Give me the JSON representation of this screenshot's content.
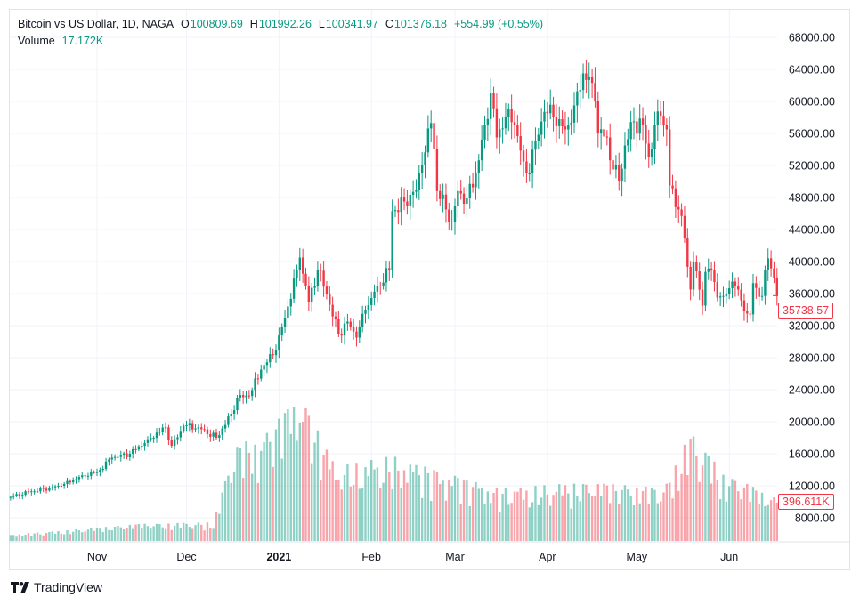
{
  "legend": {
    "symbol": "Bitcoin vs US Dollar, 1D, NAGA",
    "open_label": "O",
    "open": "100809.69",
    "high_label": "H",
    "high": "101992.26",
    "low_label": "L",
    "low": "100341.97",
    "close_label": "C",
    "close": "101376.18",
    "change": "+554.99 (+0.55%)",
    "volume_label": "Volume",
    "volume": "17.172K"
  },
  "price_tag": "35738.57",
  "volume_tag": "396.611K",
  "brand": "TradingView",
  "colors": {
    "up": "#089981",
    "down": "#f23645",
    "grid": "#f0f3fa"
  },
  "chart_data": {
    "type": "candlestick",
    "interval": "1D",
    "y_axis": {
      "ticks": [
        "68000.00",
        "64000.00",
        "60000.00",
        "56000.00",
        "52000.00",
        "48000.00",
        "44000.00",
        "40000.00",
        "36000.00",
        "32000.00",
        "28000.00",
        "24000.00",
        "20000.00",
        "16000.00",
        "12000.00",
        "8000.00"
      ],
      "range": [
        8000,
        68000
      ]
    },
    "x_axis": {
      "ticks": [
        {
          "label": "Nov",
          "date": "2020-11-01",
          "bold": false
        },
        {
          "label": "Dec",
          "date": "2020-12-01",
          "bold": false
        },
        {
          "label": "2021",
          "date": "2021-01-01",
          "bold": true
        },
        {
          "label": "Feb",
          "date": "2021-02-01",
          "bold": false
        },
        {
          "label": "Mar",
          "date": "2021-03-01",
          "bold": false
        },
        {
          "label": "Apr",
          "date": "2021-04-01",
          "bold": false
        },
        {
          "label": "May",
          "date": "2021-05-01",
          "bold": false
        },
        {
          "label": "Jun",
          "date": "2021-06-01",
          "bold": false
        }
      ]
    },
    "approx_close": [
      [
        "2020-10-03",
        10600
      ],
      [
        "2020-10-10",
        11300
      ],
      [
        "2020-10-20",
        12000
      ],
      [
        "2020-10-27",
        13300
      ],
      [
        "2020-11-01",
        13700
      ],
      [
        "2020-11-06",
        15500
      ],
      [
        "2020-11-12",
        16000
      ],
      [
        "2020-11-18",
        17800
      ],
      [
        "2020-11-24",
        19300
      ],
      [
        "2020-11-26",
        17000
      ],
      [
        "2020-11-30",
        19500
      ],
      [
        "2020-12-05",
        19300
      ],
      [
        "2020-12-11",
        18000
      ],
      [
        "2020-12-16",
        21000
      ],
      [
        "2020-12-18",
        23000
      ],
      [
        "2020-12-22",
        23200
      ],
      [
        "2020-12-26",
        26500
      ],
      [
        "2020-12-31",
        29000
      ],
      [
        "2021-01-03",
        33000
      ],
      [
        "2021-01-07",
        39000
      ],
      [
        "2021-01-08",
        40500
      ],
      [
        "2021-01-11",
        35000
      ],
      [
        "2021-01-14",
        39000
      ],
      [
        "2021-01-17",
        36000
      ],
      [
        "2021-01-21",
        31000
      ],
      [
        "2021-01-24",
        32500
      ],
      [
        "2021-01-27",
        30500
      ],
      [
        "2021-01-30",
        34000
      ],
      [
        "2021-02-03",
        37000
      ],
      [
        "2021-02-07",
        39000
      ],
      [
        "2021-02-08",
        46300
      ],
      [
        "2021-02-12",
        47500
      ],
      [
        "2021-02-16",
        49000
      ],
      [
        "2021-02-18",
        52000
      ],
      [
        "2021-02-21",
        57300
      ],
      [
        "2021-02-22",
        54000
      ],
      [
        "2021-02-23",
        48800
      ],
      [
        "2021-02-26",
        46500
      ],
      [
        "2021-02-28",
        45000
      ],
      [
        "2021-03-02",
        48800
      ],
      [
        "2021-03-05",
        48000
      ],
      [
        "2021-03-08",
        51000
      ],
      [
        "2021-03-11",
        57000
      ],
      [
        "2021-03-13",
        61000
      ],
      [
        "2021-03-15",
        55500
      ],
      [
        "2021-03-18",
        58000
      ],
      [
        "2021-03-21",
        57000
      ],
      [
        "2021-03-24",
        52500
      ],
      [
        "2021-03-25",
        51000
      ],
      [
        "2021-03-28",
        55000
      ],
      [
        "2021-03-31",
        58700
      ],
      [
        "2021-04-03",
        58000
      ],
      [
        "2021-04-07",
        56500
      ],
      [
        "2021-04-10",
        59500
      ],
      [
        "2021-04-13",
        63500
      ],
      [
        "2021-04-15",
        63000
      ],
      [
        "2021-04-17",
        60000
      ],
      [
        "2021-04-18",
        56000
      ],
      [
        "2021-04-21",
        55500
      ],
      [
        "2021-04-23",
        51500
      ],
      [
        "2021-04-25",
        50000
      ],
      [
        "2021-04-27",
        54500
      ],
      [
        "2021-04-30",
        57500
      ],
      [
        "2021-05-03",
        57000
      ],
      [
        "2021-05-05",
        53000
      ],
      [
        "2021-05-07",
        57000
      ],
      [
        "2021-05-09",
        58200
      ],
      [
        "2021-05-11",
        56500
      ],
      [
        "2021-05-12",
        49500
      ],
      [
        "2021-05-15",
        46500
      ],
      [
        "2021-05-17",
        43000
      ],
      [
        "2021-05-19",
        36500
      ],
      [
        "2021-05-20",
        40000
      ],
      [
        "2021-05-23",
        34500
      ],
      [
        "2021-05-24",
        38700
      ],
      [
        "2021-05-26",
        39000
      ],
      [
        "2021-05-28",
        35500
      ],
      [
        "2021-05-30",
        35700
      ],
      [
        "2021-06-02",
        37500
      ],
      [
        "2021-06-04",
        36500
      ],
      [
        "2021-06-07",
        33500
      ],
      [
        "2021-06-08",
        33400
      ],
      [
        "2021-06-09",
        37300
      ],
      [
        "2021-06-12",
        35700
      ],
      [
        "2021-06-13",
        39000
      ],
      [
        "2021-06-14",
        40400
      ],
      [
        "2021-06-16",
        38000
      ],
      [
        "2021-06-17",
        35738.57
      ]
    ],
    "approx_volume_k": [
      [
        "2020-10-03",
        60
      ],
      [
        "2020-10-25",
        110
      ],
      [
        "2020-11-15",
        160
      ],
      [
        "2020-12-10",
        180
      ],
      [
        "2020-12-17",
        900
      ],
      [
        "2020-12-27",
        1000
      ],
      [
        "2021-01-08",
        1380
      ],
      [
        "2021-01-20",
        700
      ],
      [
        "2021-02-08",
        800
      ],
      [
        "2021-02-25",
        650
      ],
      [
        "2021-03-15",
        500
      ],
      [
        "2021-04-15",
        550
      ],
      [
        "2021-05-10",
        500
      ],
      [
        "2021-05-19",
        1050
      ],
      [
        "2021-05-30",
        650
      ],
      [
        "2021-06-17",
        396.611
      ]
    ]
  }
}
